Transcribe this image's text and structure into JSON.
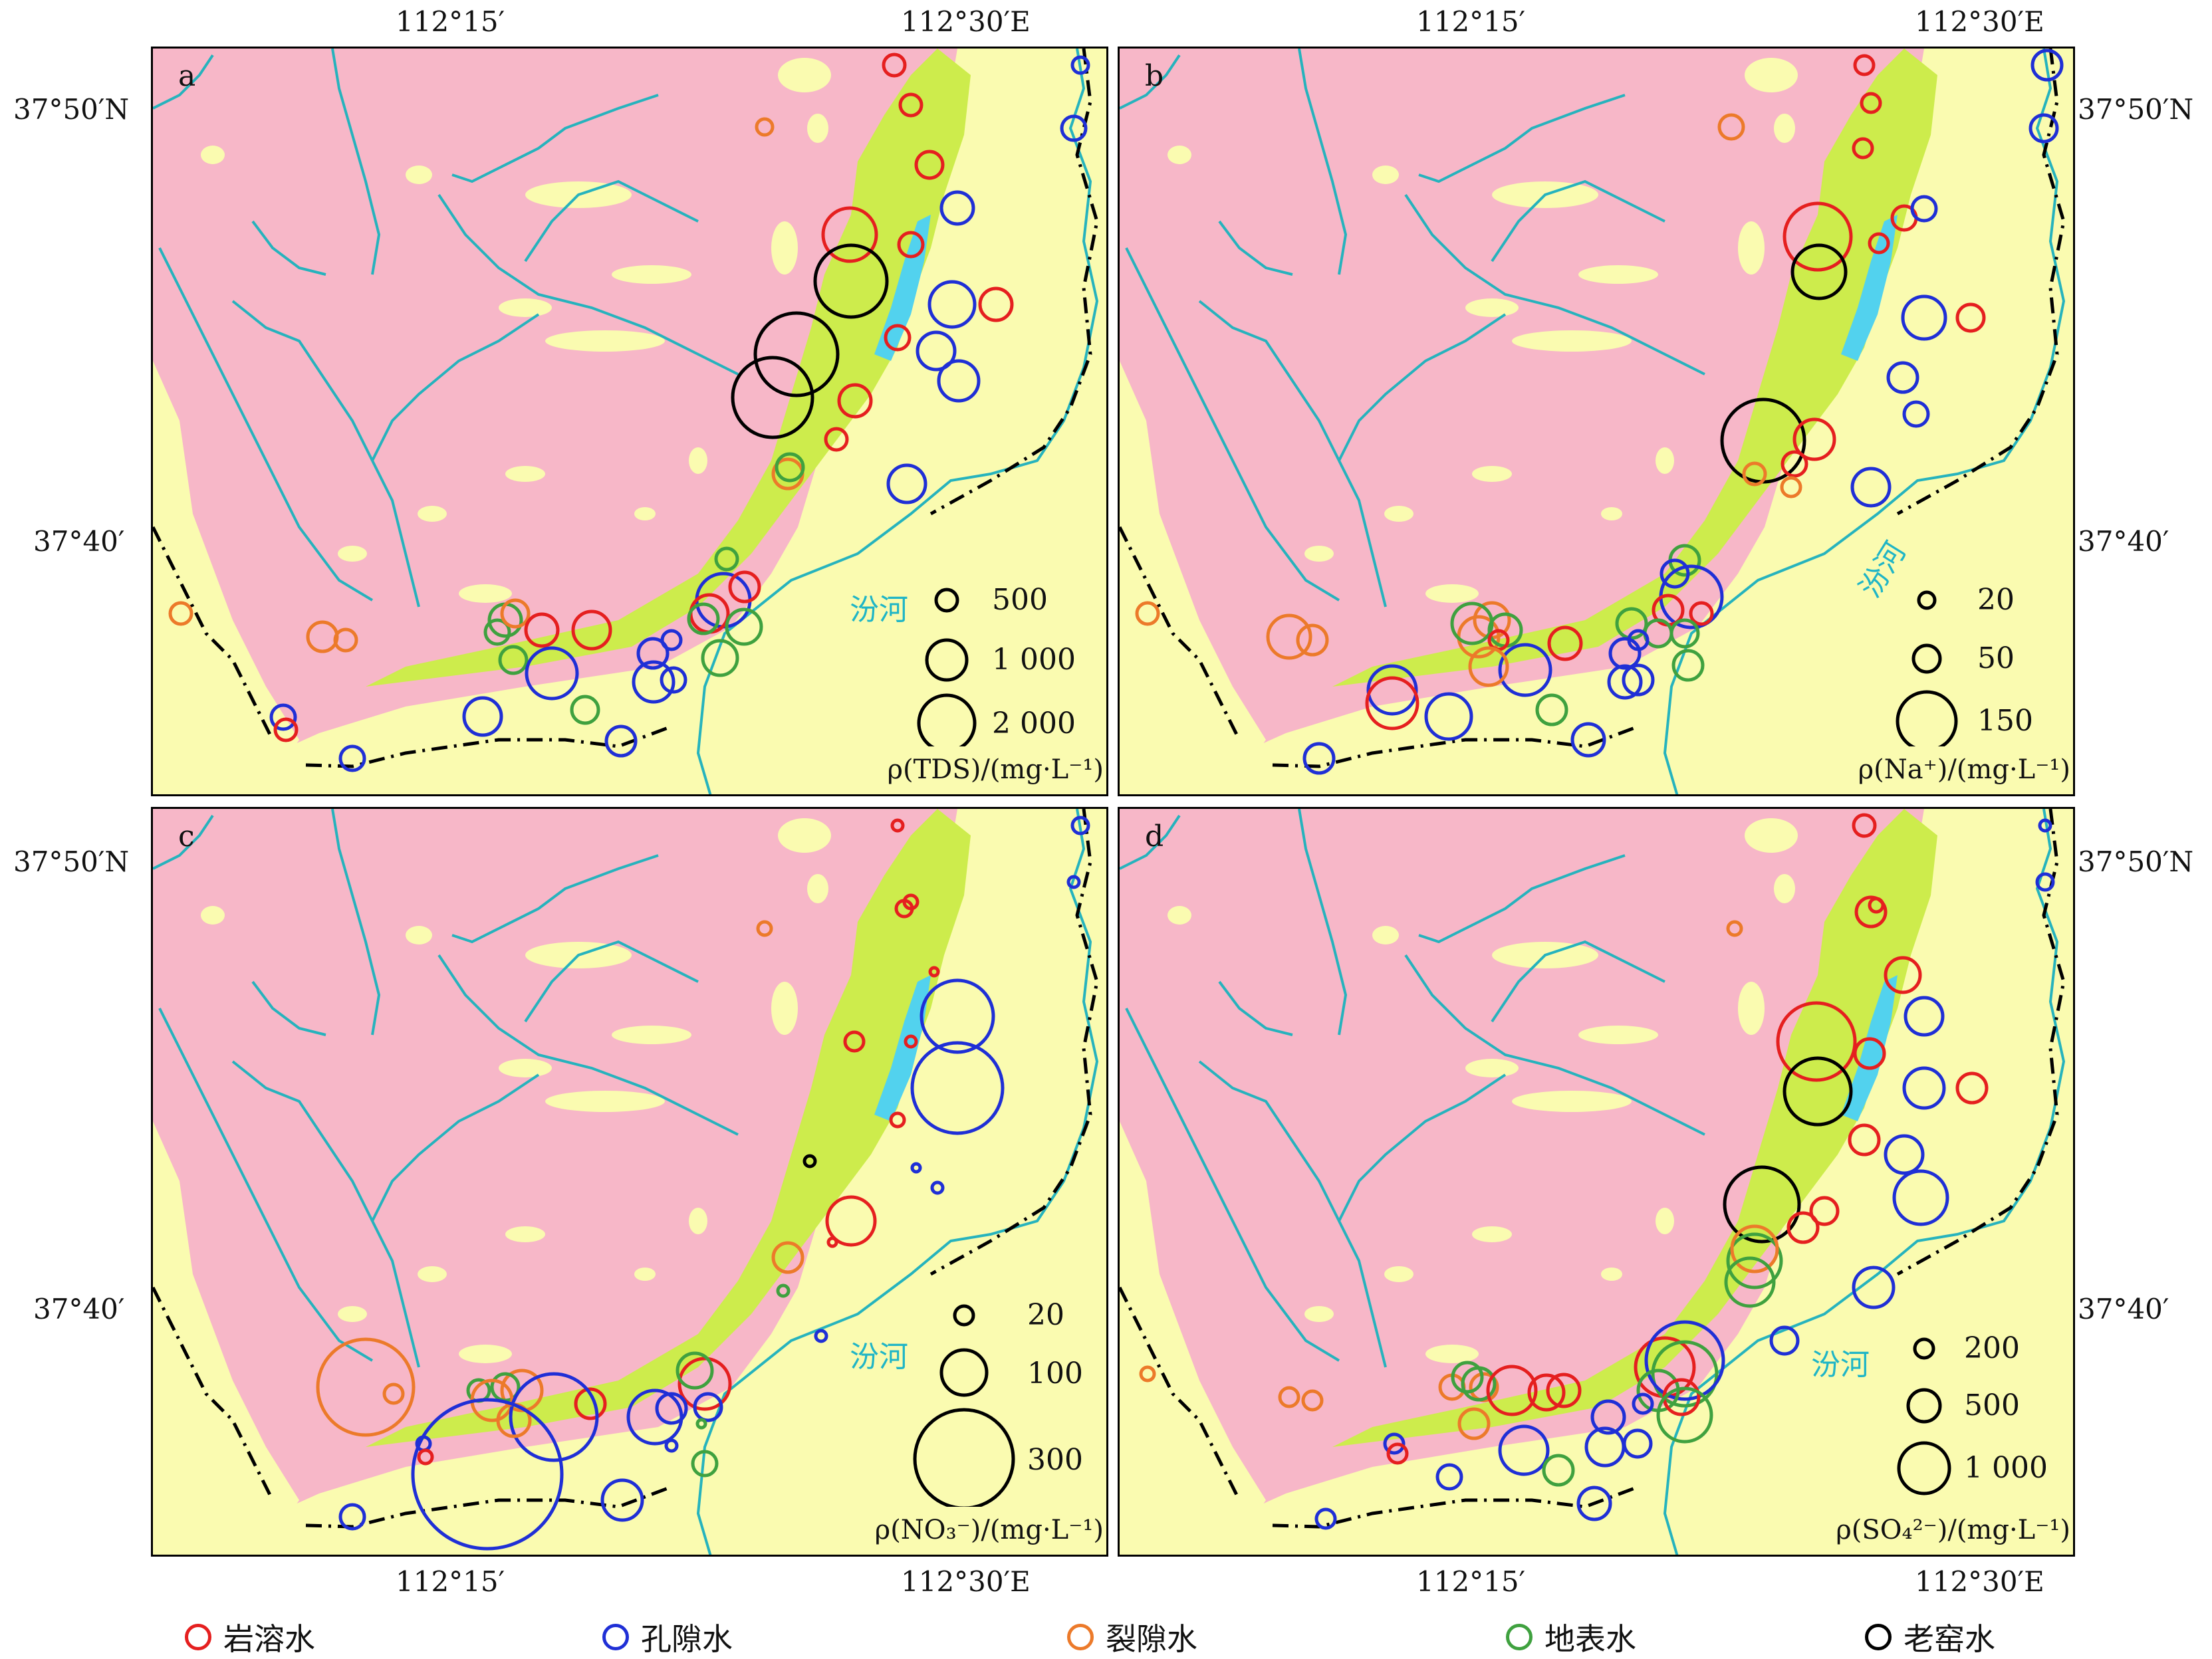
{
  "axes": {
    "top_lon": [
      "112°15′",
      "112°30′E"
    ],
    "bottom_lon": [
      "112°15′",
      "112°30′E"
    ],
    "left_lat": [
      "37°50′N",
      "37°40′"
    ],
    "right_lat": [
      "37°50′N",
      "37°40′"
    ]
  },
  "river_name": "汾河",
  "colors": {
    "karst": "#e51f1f",
    "pore": "#1f2fd6",
    "fissure": "#ec7a2a",
    "surface": "#3fa13f",
    "old_kiln": "#000000",
    "bedrock": "#f7b7c8",
    "loess": "#fafbb0",
    "green_unit": "#cdec4c",
    "lake": "#52d2ee",
    "river": "#26b3bd"
  },
  "panels": [
    {
      "letter": "a",
      "unit": "ρ(TDS)/(mg·L⁻¹)",
      "scale": [
        {
          "value": "500",
          "label": "500"
        },
        {
          "value": "1000",
          "label": "1 000"
        },
        {
          "value": "2000",
          "label": "2 000"
        }
      ]
    },
    {
      "letter": "b",
      "unit": "ρ(Na⁺)/(mg·L⁻¹)",
      "scale": [
        {
          "value": "20",
          "label": "20"
        },
        {
          "value": "50",
          "label": "50"
        },
        {
          "value": "150",
          "label": "150"
        }
      ]
    },
    {
      "letter": "c",
      "unit": "ρ(NO₃⁻)/(mg·L⁻¹)",
      "scale": [
        {
          "value": "20",
          "label": "20"
        },
        {
          "value": "100",
          "label": "100"
        },
        {
          "value": "300",
          "label": "300"
        }
      ]
    },
    {
      "letter": "d",
      "unit": "ρ(SO₄²⁻)/(mg·L⁻¹)",
      "scale": [
        {
          "value": "200",
          "label": "200"
        },
        {
          "value": "500",
          "label": "500"
        },
        {
          "value": "1000",
          "label": "1 000"
        }
      ]
    }
  ],
  "legend": [
    {
      "key": "karst",
      "label": "岩溶水"
    },
    {
      "key": "pore",
      "label": "孔隙水"
    },
    {
      "key": "fissure",
      "label": "裂隙水"
    },
    {
      "key": "surface",
      "label": "地表水"
    },
    {
      "key": "old_kiln",
      "label": "老窑水"
    }
  ]
}
